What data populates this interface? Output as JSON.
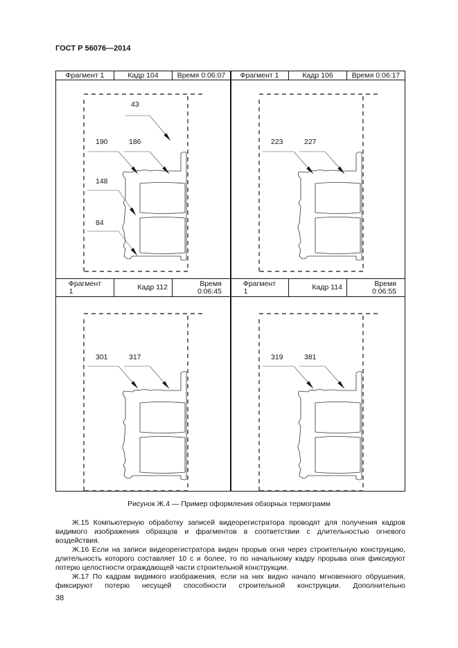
{
  "header": {
    "title": "ГОСТ Р 56076—2014"
  },
  "figure": {
    "panels": [
      {
        "fragment": "Фрагмент 1",
        "frame": "Кадр 104",
        "time": "Время 0:06:07",
        "labels": [
          "43",
          "190",
          "186",
          "148",
          "84"
        ]
      },
      {
        "fragment": "Фрагмент 1",
        "frame": "Кадр 106",
        "time": "Время 0:06:17",
        "labels": [
          "223",
          "227"
        ]
      },
      {
        "fragment_l1": "Фрагмент",
        "fragment_l2": "1",
        "frame": "Кадр 112",
        "time_l1": "Время",
        "time_l2": "0:06:45",
        "labels": [
          "301",
          "317"
        ]
      },
      {
        "fragment_l1": "Фрагмент",
        "fragment_l2": "1",
        "frame": "Кадр 114",
        "time_l1": "Время",
        "time_l2": "0:06:55",
        "labels": [
          "319",
          "381"
        ]
      }
    ],
    "caption": "Рисунок Ж.4 — Пример оформления обзорных термограмм"
  },
  "body": {
    "p15": "Ж.15 Компьютерную обработку записей видеорегистратора проводят для получения кадров видимого изображения образцов и фрагментов в соответствии с длительностью огневого воздействия.",
    "p16": "Ж.16 Если на записи видеорегистратора виден прорыв огня через строительную конструкцию, длительность которого составляет 10 с и более, то по начальному кадру прорыва огня фиксируют потерю целостности ограждающей части строительной конструкции.",
    "p17": "Ж.17 По кадрам видимого изображения, если на них видно начало мгновенного обрушения, фиксируют потерю несущей способности строительной конструкции. Дополнительно"
  },
  "footer": {
    "page_number": "38"
  }
}
